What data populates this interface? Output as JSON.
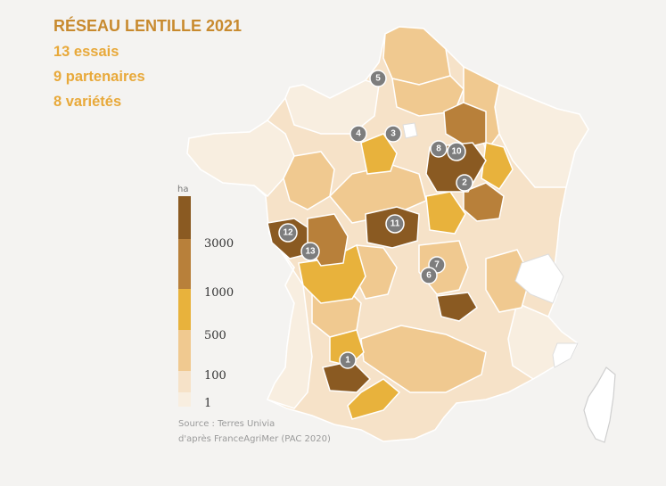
{
  "title": "RÉSEAU LENTILLE 2021",
  "stats": [
    "13 essais",
    "9 partenaires",
    "8 variétés"
  ],
  "legend": {
    "unit": "ha",
    "ticks": [
      "3000",
      "1000",
      "500",
      "100",
      "1"
    ],
    "colors": [
      "#8a5a22",
      "#b8803a",
      "#e8b23c",
      "#f0c990",
      "#f6e2c8",
      "#f8eee0"
    ]
  },
  "source": [
    "Source : Terres Univia",
    "d'après FranceAgriMer (PAC 2020)"
  ],
  "trials": [
    "1",
    "2",
    "3",
    "4",
    "5",
    "6",
    "7",
    "8",
    "10",
    "11",
    "12",
    "13"
  ]
}
